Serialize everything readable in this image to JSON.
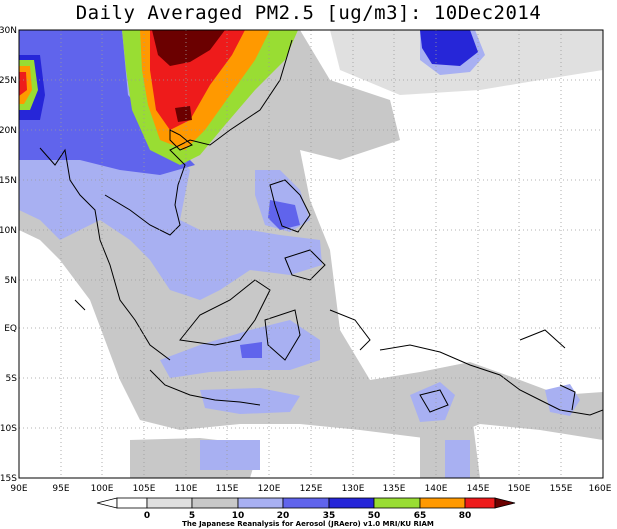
{
  "title": "Daily Averaged PM2.5 [ug/m3]: 10Dec2014",
  "lat_labels": [
    "30N",
    "25N",
    "20N",
    "15N",
    "10N",
    "5N",
    "EQ",
    "5S",
    "10S",
    "15S"
  ],
  "lon_labels": [
    "90E",
    "95E",
    "100E",
    "105E",
    "110E",
    "115E",
    "120E",
    "125E",
    "130E",
    "135E",
    "140E",
    "145E",
    "150E",
    "155E",
    "160E"
  ],
  "legend": {
    "colors": [
      "#ffffff",
      "#e0e0e0",
      "#c8c8c8",
      "#a8b0f2",
      "#6064ec",
      "#2626d8",
      "#99dd33",
      "#ff9900",
      "#ee1b1b",
      "#6b0000"
    ],
    "tick_labels": [
      "0",
      "5",
      "10",
      "20",
      "35",
      "50",
      "65",
      "80"
    ]
  },
  "credit": "The Japanese Reanalysis for Aerosol (JRAero) v1.0 MRI/KU RIAM"
}
